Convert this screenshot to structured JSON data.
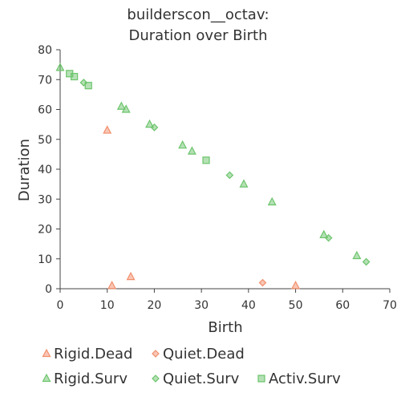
{
  "chart_data": {
    "type": "scatter",
    "title_line1": "builderscon__octav:",
    "title_line2": "Duration over Birth",
    "xlabel": "Birth",
    "ylabel": "Duration",
    "xlim": [
      0,
      70
    ],
    "ylim": [
      0,
      80
    ],
    "xticks": [
      "0",
      "10",
      "20",
      "30",
      "40",
      "50",
      "60",
      "70"
    ],
    "yticks": [
      "0",
      "10",
      "20",
      "30",
      "40",
      "50",
      "60",
      "70",
      "80"
    ],
    "grid": false,
    "legend_position": "bottom",
    "series": [
      {
        "name": "Rigid.Dead",
        "marker": "triangle",
        "color": "#f28e6b",
        "points": [
          [
            10,
            53
          ],
          [
            11,
            1
          ],
          [
            15,
            4
          ],
          [
            50,
            1
          ]
        ]
      },
      {
        "name": "Quiet.Dead",
        "marker": "diamond",
        "color": "#f28e6b",
        "points": [
          [
            43,
            2
          ]
        ]
      },
      {
        "name": "Rigid.Surv",
        "marker": "triangle",
        "color": "#6cc46c",
        "points": [
          [
            0,
            74
          ],
          [
            13,
            61
          ],
          [
            14,
            60
          ],
          [
            19,
            55
          ],
          [
            26,
            48
          ],
          [
            28,
            46
          ],
          [
            39,
            35
          ],
          [
            45,
            29
          ],
          [
            56,
            18
          ],
          [
            63,
            11
          ]
        ]
      },
      {
        "name": "Quiet.Surv",
        "marker": "diamond",
        "color": "#6cc46c",
        "points": [
          [
            5,
            69
          ],
          [
            20,
            54
          ],
          [
            36,
            38
          ],
          [
            57,
            17
          ],
          [
            65,
            9
          ]
        ]
      },
      {
        "name": "Activ.Surv",
        "marker": "square",
        "color": "#6cc46c",
        "points": [
          [
            2,
            72
          ],
          [
            3,
            71
          ],
          [
            6,
            68
          ],
          [
            31,
            43
          ]
        ]
      }
    ]
  }
}
